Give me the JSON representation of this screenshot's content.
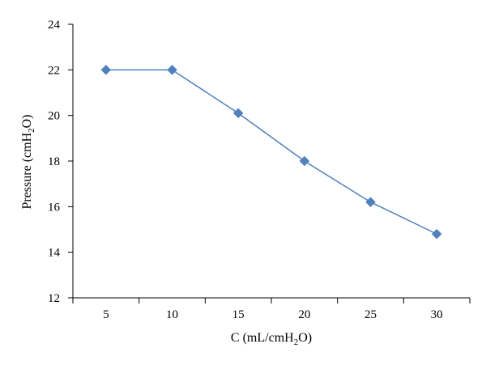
{
  "chart_data": {
    "type": "line",
    "title": "",
    "xlabel": {
      "pre": "C (mL/cmH",
      "sub": "2",
      "post": "O)"
    },
    "ylabel": {
      "pre": "Pressure (cmH",
      "sub": "2",
      "post": "O)"
    },
    "categories": [
      "5",
      "10",
      "15",
      "20",
      "25",
      "30"
    ],
    "ylim": [
      12,
      24
    ],
    "yticks": [
      12,
      14,
      16,
      18,
      20,
      22,
      24
    ],
    "series": [
      {
        "values": [
          22.0,
          22.0,
          20.1,
          18.0,
          16.2,
          14.8
        ]
      }
    ],
    "grid": false,
    "legend": "none",
    "marker": "diamond",
    "colors": {
      "line": "#4f81bd",
      "marker": "#4f81bd",
      "axis": "#000000"
    }
  }
}
